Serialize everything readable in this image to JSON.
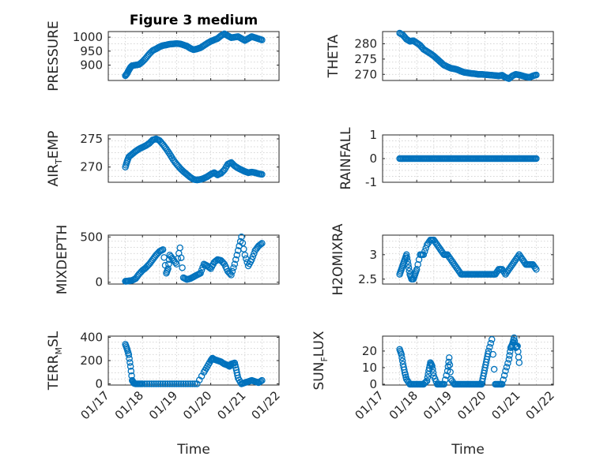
{
  "chart_data": [
    {
      "id": "pressure",
      "type": "scatter",
      "title": "Figure 3 medium",
      "ylabel": "PRESSURE",
      "xlim": [
        0,
        5
      ],
      "ylim": [
        845,
        1020
      ],
      "yticks": [
        900,
        950,
        1000
      ],
      "ytick_labels": [
        "900",
        "950",
        "1000"
      ],
      "xticks": [
        0,
        1,
        2,
        3,
        4,
        5
      ],
      "xtick_labels": [],
      "xlabel": "",
      "x": [
        0.5,
        0.55,
        0.6,
        0.65,
        0.7,
        0.8,
        0.9,
        1.0,
        1.1,
        1.2,
        1.3,
        1.4,
        1.5,
        1.6,
        1.7,
        1.8,
        1.9,
        2.0,
        2.1,
        2.2,
        2.3,
        2.4,
        2.5,
        2.6,
        2.7,
        2.8,
        2.9,
        3.0,
        3.1,
        3.2,
        3.3,
        3.4,
        3.5,
        3.6,
        3.7,
        3.8,
        3.9,
        4.0,
        4.1,
        4.2,
        4.3,
        4.4,
        4.5
      ],
      "y": [
        862,
        870,
        882,
        892,
        898,
        900,
        902,
        912,
        925,
        940,
        952,
        958,
        965,
        970,
        972,
        975,
        976,
        977,
        976,
        972,
        968,
        960,
        955,
        958,
        962,
        970,
        978,
        985,
        990,
        995,
        1005,
        1012,
        1005,
        998,
        1000,
        1002,
        995,
        988,
        995,
        1002,
        998,
        994,
        990
      ]
    },
    {
      "id": "theta",
      "type": "scatter",
      "title": "",
      "ylabel": "THETA",
      "xlim": [
        0,
        5
      ],
      "ylim": [
        268,
        284
      ],
      "yticks": [
        270,
        275,
        280
      ],
      "ytick_labels": [
        "270",
        "275",
        "280"
      ],
      "xticks": [
        0,
        1,
        2,
        3,
        4,
        5
      ],
      "xtick_labels": [],
      "xlabel": "",
      "x": [
        0.5,
        0.6,
        0.7,
        0.8,
        0.9,
        1.0,
        1.1,
        1.2,
        1.3,
        1.4,
        1.5,
        1.6,
        1.7,
        1.8,
        1.9,
        2.0,
        2.1,
        2.2,
        2.3,
        2.4,
        2.5,
        2.6,
        2.7,
        2.8,
        2.9,
        3.0,
        3.1,
        3.2,
        3.3,
        3.4,
        3.5,
        3.6,
        3.7,
        3.8,
        3.9,
        4.0,
        4.1,
        4.2,
        4.3,
        4.4,
        4.5
      ],
      "y": [
        283.5,
        282.8,
        281.5,
        280.8,
        281.0,
        280.3,
        279.5,
        278.2,
        277.5,
        276.8,
        276.0,
        275.0,
        274.0,
        273.0,
        272.5,
        272.0,
        271.8,
        271.5,
        271.0,
        270.6,
        270.5,
        270.3,
        270.2,
        270.0,
        270.0,
        269.9,
        269.8,
        269.7,
        269.6,
        269.5,
        269.7,
        269.0,
        268.6,
        269.5,
        270.0,
        269.8,
        269.5,
        269.2,
        269.0,
        269.5,
        269.8
      ]
    },
    {
      "id": "air_temp",
      "type": "scatter",
      "title": "",
      "ylabel": "AIR",
      "ylabel_sub": "T",
      "ylabel_rest": "EMP",
      "xlim": [
        0,
        5
      ],
      "ylim": [
        267.3,
        275.7
      ],
      "yticks": [
        270,
        275
      ],
      "ytick_labels": [
        "270",
        "275"
      ],
      "xticks": [
        0,
        1,
        2,
        3,
        4,
        5
      ],
      "xtick_labels": [],
      "xlabel": "",
      "x": [
        0.5,
        0.55,
        0.6,
        0.7,
        0.8,
        0.9,
        1.0,
        1.1,
        1.2,
        1.3,
        1.4,
        1.5,
        1.6,
        1.7,
        1.8,
        1.9,
        2.0,
        2.1,
        2.2,
        2.3,
        2.4,
        2.5,
        2.6,
        2.7,
        2.8,
        2.9,
        3.0,
        3.1,
        3.2,
        3.3,
        3.4,
        3.5,
        3.6,
        3.7,
        3.8,
        3.9,
        4.0,
        4.1,
        4.2,
        4.3,
        4.4,
        4.5
      ],
      "y": [
        270.0,
        271.0,
        271.8,
        272.3,
        272.8,
        273.2,
        273.5,
        273.8,
        274.2,
        274.8,
        275.0,
        274.7,
        274.0,
        273.2,
        272.3,
        271.3,
        270.5,
        269.8,
        269.2,
        268.7,
        268.2,
        267.8,
        267.7,
        267.8,
        268.0,
        268.3,
        268.7,
        269.0,
        268.6,
        268.9,
        269.5,
        270.5,
        270.8,
        270.2,
        269.8,
        269.5,
        269.2,
        269.0,
        269.1,
        269.0,
        268.8,
        268.7
      ]
    },
    {
      "id": "rainfall",
      "type": "scatter",
      "title": "",
      "ylabel": "RAINFALL",
      "xlim": [
        0,
        5
      ],
      "ylim": [
        -1,
        1
      ],
      "yticks": [
        -1,
        0,
        1
      ],
      "ytick_labels": [
        "-1",
        "0",
        "1"
      ],
      "xticks": [
        0,
        1,
        2,
        3,
        4,
        5
      ],
      "xtick_labels": [],
      "xlabel": "",
      "x": [
        0.5,
        0.6,
        0.7,
        0.8,
        0.9,
        1.0,
        1.1,
        1.2,
        1.3,
        1.4,
        1.5,
        1.6,
        1.7,
        1.8,
        1.9,
        2.0,
        2.1,
        2.2,
        2.3,
        2.4,
        2.5,
        2.6,
        2.7,
        2.8,
        2.9,
        3.0,
        3.1,
        3.2,
        3.3,
        3.4,
        3.5,
        3.6,
        3.7,
        3.8,
        3.9,
        4.0,
        4.1,
        4.2,
        4.3,
        4.4,
        4.5
      ],
      "y": [
        0,
        0,
        0,
        0,
        0,
        0,
        0,
        0,
        0,
        0,
        0,
        0,
        0,
        0,
        0,
        0,
        0,
        0,
        0,
        0,
        0,
        0,
        0,
        0,
        0,
        0,
        0,
        0,
        0,
        0,
        0,
        0,
        0,
        0,
        0,
        0,
        0,
        0,
        0,
        0,
        0
      ]
    },
    {
      "id": "mixdepth",
      "type": "scatter",
      "title": "",
      "ylabel": "MIXDEPTH",
      "xlim": [
        0,
        5
      ],
      "ylim": [
        -20,
        520
      ],
      "yticks": [
        0,
        500
      ],
      "ytick_labels": [
        "0",
        "500"
      ],
      "xticks": [
        0,
        1,
        2,
        3,
        4,
        5
      ],
      "xtick_labels": [],
      "xlabel": "",
      "x": [
        0.5,
        0.55,
        0.6,
        0.7,
        0.8,
        0.9,
        1.0,
        1.1,
        1.2,
        1.3,
        1.4,
        1.5,
        1.6,
        1.7,
        1.75,
        1.8,
        1.9,
        2.0,
        2.1,
        2.2,
        2.3,
        2.4,
        2.5,
        2.6,
        2.7,
        2.8,
        2.9,
        3.0,
        3.1,
        3.2,
        3.3,
        3.4,
        3.5,
        3.6,
        3.7,
        3.8,
        3.9,
        4.0,
        4.1,
        4.2,
        4.3,
        4.4,
        4.5
      ],
      "y": [
        10,
        12,
        15,
        20,
        40,
        90,
        130,
        160,
        200,
        250,
        300,
        340,
        360,
        100,
        150,
        300,
        250,
        200,
        380,
        50,
        30,
        40,
        60,
        80,
        100,
        200,
        180,
        150,
        220,
        250,
        240,
        200,
        120,
        80,
        200,
        350,
        500,
        300,
        180,
        250,
        350,
        400,
        430
      ]
    },
    {
      "id": "h2omixra",
      "type": "scatter",
      "title": "",
      "ylabel": "H2OMIXRA",
      "xlim": [
        0,
        5
      ],
      "ylim": [
        2.4,
        3.4
      ],
      "yticks": [
        2.5,
        3
      ],
      "ytick_labels": [
        "2.5",
        "3"
      ],
      "xticks": [
        0,
        1,
        2,
        3,
        4,
        5
      ],
      "xtick_labels": [],
      "xlabel": "",
      "x": [
        0.5,
        0.55,
        0.6,
        0.65,
        0.7,
        0.75,
        0.8,
        0.85,
        0.9,
        0.95,
        1.0,
        1.1,
        1.2,
        1.3,
        1.4,
        1.5,
        1.6,
        1.7,
        1.8,
        1.9,
        2.0,
        2.1,
        2.2,
        2.3,
        2.4,
        2.5,
        2.6,
        2.7,
        2.8,
        2.9,
        3.0,
        3.1,
        3.2,
        3.3,
        3.4,
        3.5,
        3.6,
        3.7,
        3.8,
        3.9,
        4.0,
        4.1,
        4.2,
        4.3,
        4.4,
        4.5
      ],
      "y": [
        2.6,
        2.7,
        2.8,
        2.9,
        3.0,
        2.8,
        2.6,
        2.5,
        2.5,
        2.6,
        2.7,
        3.0,
        3.0,
        3.2,
        3.3,
        3.3,
        3.2,
        3.1,
        3.0,
        3.0,
        2.9,
        2.8,
        2.7,
        2.6,
        2.6,
        2.6,
        2.6,
        2.6,
        2.6,
        2.6,
        2.6,
        2.6,
        2.6,
        2.6,
        2.7,
        2.7,
        2.6,
        2.7,
        2.8,
        2.9,
        3.0,
        2.9,
        2.8,
        2.8,
        2.8,
        2.7
      ]
    },
    {
      "id": "terr_msl",
      "type": "scatter",
      "title": "",
      "ylabel": "TERR",
      "ylabel_sub": "M",
      "ylabel_rest": "SL",
      "xlim": [
        0,
        5
      ],
      "ylim": [
        -10,
        410
      ],
      "yticks": [
        0,
        200,
        400
      ],
      "ytick_labels": [
        "0",
        "200",
        "400"
      ],
      "xticks": [
        0,
        1,
        2,
        3,
        4,
        5
      ],
      "xtick_labels": [
        "01/17",
        "01/18",
        "01/19",
        "01/20",
        "01/21",
        "01/22"
      ],
      "xlabel": "Time",
      "x": [
        0.5,
        0.55,
        0.6,
        0.65,
        0.7,
        0.75,
        0.8,
        0.9,
        1.0,
        1.2,
        1.4,
        1.6,
        1.8,
        2.0,
        2.2,
        2.4,
        2.6,
        2.8,
        2.9,
        3.0,
        3.05,
        3.1,
        3.2,
        3.3,
        3.4,
        3.5,
        3.55,
        3.6,
        3.7,
        3.75,
        3.8,
        3.9,
        4.0,
        4.1,
        4.2,
        4.3,
        4.4,
        4.5
      ],
      "y": [
        340,
        300,
        250,
        150,
        30,
        5,
        0,
        0,
        0,
        0,
        0,
        0,
        0,
        0,
        0,
        0,
        0,
        100,
        150,
        200,
        220,
        210,
        200,
        190,
        170,
        160,
        150,
        170,
        180,
        120,
        50,
        0,
        10,
        20,
        30,
        20,
        10,
        30
      ]
    },
    {
      "id": "sun_flux",
      "type": "scatter",
      "title": "",
      "ylabel": "SUN",
      "ylabel_sub": "F",
      "ylabel_rest": "LUX",
      "xlim": [
        0,
        5
      ],
      "ylim": [
        -0.5,
        29
      ],
      "yticks": [
        0,
        10,
        20
      ],
      "ytick_labels": [
        "0",
        "10",
        "20"
      ],
      "xticks": [
        0,
        1,
        2,
        3,
        4,
        5
      ],
      "xtick_labels": [
        "01/17",
        "01/18",
        "01/19",
        "01/20",
        "01/21",
        "01/22"
      ],
      "xlabel": "Time",
      "x": [
        0.5,
        0.55,
        0.6,
        0.65,
        0.7,
        0.8,
        0.9,
        1.0,
        1.1,
        1.2,
        1.3,
        1.35,
        1.4,
        1.45,
        1.5,
        1.6,
        1.7,
        1.8,
        1.9,
        1.95,
        2.0,
        2.1,
        2.2,
        2.3,
        2.4,
        2.5,
        2.6,
        2.7,
        2.8,
        2.9,
        2.95,
        3.0,
        3.05,
        3.1,
        3.2,
        3.3,
        3.4,
        3.5,
        3.6,
        3.7,
        3.75,
        3.8,
        3.85,
        3.9,
        3.95,
        4.0
      ],
      "y": [
        21,
        18,
        12,
        7,
        3,
        0,
        0,
        0,
        0,
        0,
        2,
        8,
        13,
        11,
        5,
        0,
        0,
        0,
        8,
        16,
        3,
        0,
        0,
        0,
        0,
        0,
        0,
        0,
        0,
        0,
        5,
        10,
        15,
        20,
        27,
        0,
        0,
        0,
        8,
        15,
        22,
        24,
        28,
        22,
        23,
        13
      ]
    }
  ]
}
